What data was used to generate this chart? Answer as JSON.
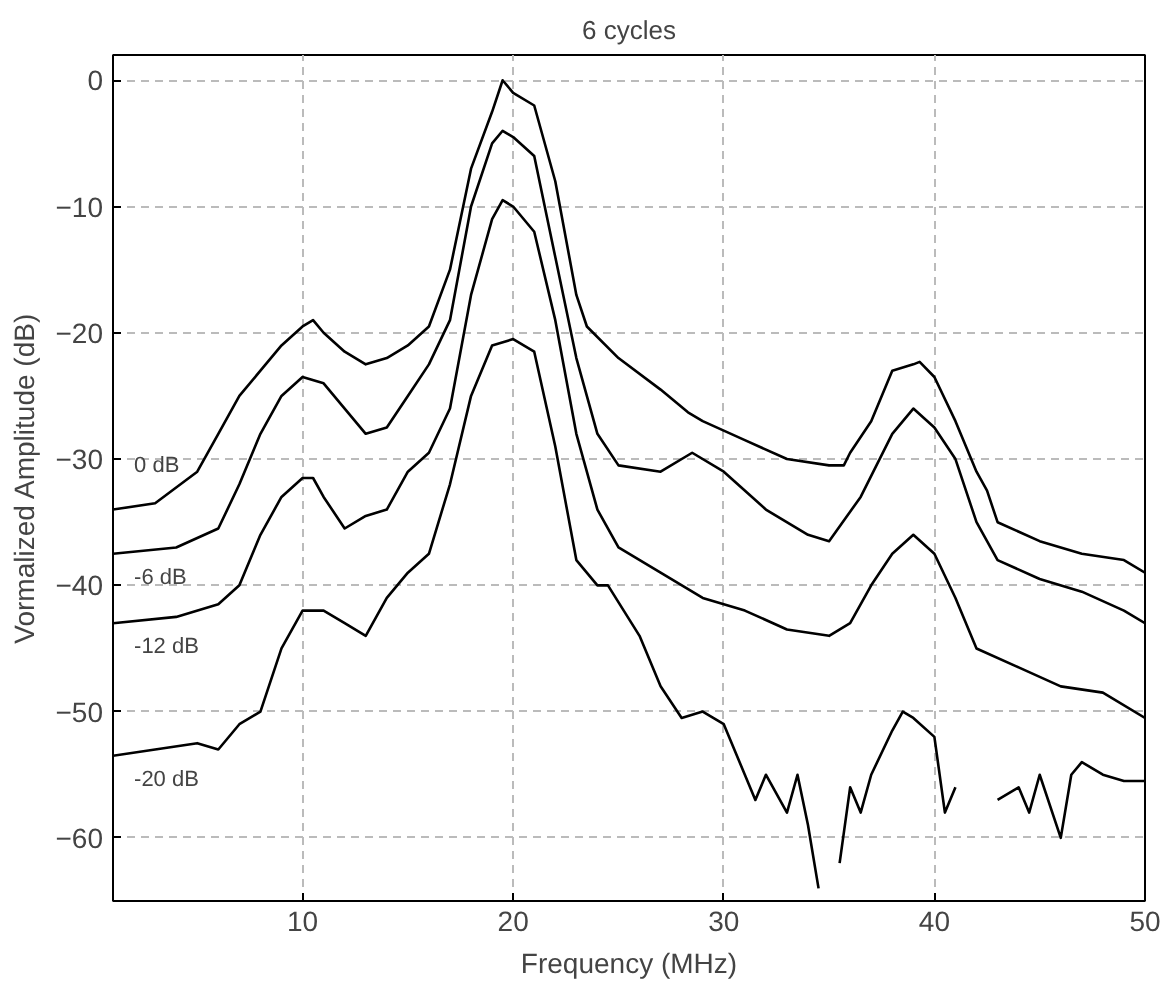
{
  "chart_data": {
    "type": "line",
    "title": "6 cycles",
    "xlabel": "Frequency (MHz)",
    "ylabel": "Vormalized Amplitude (dB)",
    "xlim": [
      1,
      50
    ],
    "ylim": [
      -65,
      2
    ],
    "xticks": [
      10,
      20,
      30,
      40,
      50
    ],
    "yticks": [
      -60,
      -50,
      -40,
      -30,
      -20,
      -10,
      0
    ],
    "grid": true,
    "legend": "left",
    "line_style": "solid",
    "series": [
      {
        "name": "0 dB",
        "color": "#000000",
        "x": [
          1,
          3,
          5,
          6,
          7,
          8,
          9,
          10,
          10.5,
          11,
          12,
          13,
          14,
          15,
          16,
          17,
          18,
          19,
          19.5,
          20,
          21,
          22,
          23,
          23.5,
          25,
          27,
          28.3,
          29,
          31,
          33,
          35,
          35.7,
          36,
          37,
          38,
          39,
          39.3,
          40,
          41,
          42,
          42.5,
          43,
          45,
          47,
          49,
          50
        ],
        "values": [
          -34,
          -33.5,
          -31,
          -28,
          -25,
          -23,
          -21,
          -19.5,
          -19,
          -20,
          -21.5,
          -22.5,
          -22,
          -21,
          -19.5,
          -15,
          -7,
          -2.5,
          0,
          -1,
          -2,
          -8,
          -17,
          -19.5,
          -22,
          -24.5,
          -26.3,
          -27,
          -28.5,
          -30,
          -30.5,
          -30.5,
          -29.5,
          -27,
          -23,
          -22.5,
          -22.3,
          -23.5,
          -27,
          -31,
          -32.5,
          -35,
          -36.5,
          -37.5,
          -38,
          -39
        ]
      },
      {
        "name": "-6 dB",
        "color": "#000000",
        "x": [
          1,
          4,
          6,
          7,
          8,
          9,
          10,
          11,
          12,
          13,
          14,
          15,
          16,
          17,
          18,
          19,
          19.5,
          20,
          21,
          22,
          23,
          24,
          25,
          27,
          28.5,
          30,
          32,
          34,
          35,
          36.5,
          38,
          39,
          40,
          41,
          42,
          43,
          45,
          47,
          49,
          50
        ],
        "values": [
          -37.5,
          -37,
          -35.5,
          -32,
          -28,
          -25,
          -23.5,
          -24,
          -26,
          -28,
          -27.5,
          -25,
          -22.5,
          -19,
          -10,
          -5,
          -4,
          -4.5,
          -6,
          -14,
          -22,
          -28,
          -30.5,
          -31,
          -29.5,
          -31,
          -34,
          -36,
          -36.5,
          -33,
          -28,
          -26,
          -27.5,
          -30,
          -35,
          -38,
          -39.5,
          -40.5,
          -42,
          -43
        ]
      },
      {
        "name": "-12 dB",
        "color": "#000000",
        "x": [
          1,
          4,
          6,
          7,
          8,
          9,
          10,
          10.5,
          11,
          12,
          13,
          14,
          15,
          16,
          17,
          18,
          19,
          19.5,
          20,
          21,
          22,
          23,
          24,
          25,
          27,
          29,
          31,
          33,
          35,
          36,
          37,
          38,
          39,
          40,
          41,
          42,
          44,
          46,
          48,
          50
        ],
        "values": [
          -43,
          -42.5,
          -41.5,
          -40,
          -36,
          -33,
          -31.5,
          -31.5,
          -33,
          -35.5,
          -34.5,
          -34,
          -31,
          -29.5,
          -26,
          -17,
          -11,
          -9.5,
          -10,
          -12,
          -19,
          -28,
          -34,
          -37,
          -39,
          -41,
          -42,
          -43.5,
          -44,
          -43,
          -40,
          -37.5,
          -36,
          -37.5,
          -41,
          -45,
          -46.5,
          -48,
          -48.5,
          -50.5
        ]
      },
      {
        "name": "-20 dB",
        "color": "#000000",
        "x": [
          1,
          3,
          5,
          6,
          7,
          8,
          9,
          10,
          11,
          12,
          13,
          14,
          15,
          16,
          17,
          18,
          19,
          20,
          21,
          22,
          23,
          24,
          24.5,
          26,
          27,
          28,
          29,
          30,
          31,
          31.5,
          32,
          33,
          33.5,
          34,
          34.5,
          35,
          35.5,
          36,
          36.5,
          37,
          38,
          38.5,
          39,
          40,
          40.5,
          41,
          42,
          43,
          44,
          44.5,
          45,
          46,
          46.5,
          47,
          48,
          49,
          50
        ],
        "values": [
          -53.5,
          -53,
          -52.5,
          -53,
          -51,
          -50,
          -45,
          -42,
          -42,
          -43,
          -44,
          -41,
          -39,
          -37.5,
          -32,
          -25,
          -21,
          -20.5,
          -21.5,
          -29,
          -38,
          -40,
          -40,
          -44,
          -48,
          -50.5,
          -50,
          -51,
          -55,
          -57,
          -55,
          -58,
          -55,
          -59,
          -64,
          null,
          -62,
          -56,
          -58,
          -55,
          -51.5,
          -50,
          -50.5,
          -52,
          -58,
          -56,
          null,
          -57,
          -56,
          -58,
          -55,
          -60,
          -55,
          -54,
          -55,
          -55.5,
          -55.5
        ]
      }
    ]
  }
}
